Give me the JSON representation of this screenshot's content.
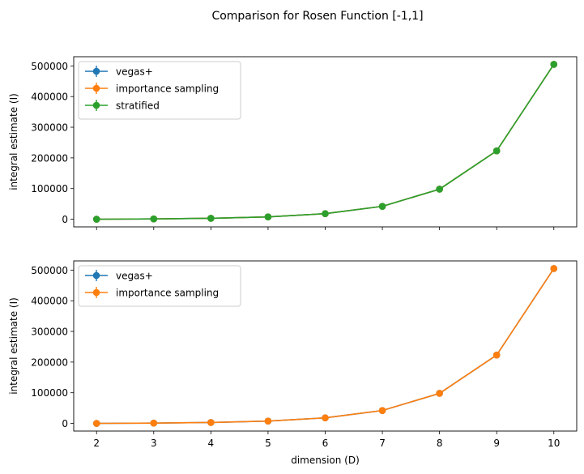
{
  "figure": {
    "title": "Comparison for Rosen Function [-1,1]"
  },
  "chart_data": [
    {
      "type": "line",
      "title": "",
      "xlabel": "",
      "ylabel": "integral estimate (I)",
      "x": [
        2,
        3,
        4,
        5,
        6,
        7,
        8,
        9,
        10
      ],
      "xlim": [
        1.6,
        10.4
      ],
      "ylim": [
        -25000,
        530000
      ],
      "yticks": [
        0,
        100000,
        200000,
        300000,
        400000,
        500000
      ],
      "show_x_tick_labels": false,
      "grid": false,
      "legend_position": "upper-left",
      "series": [
        {
          "name": "vegas+",
          "color": "#1f77b4",
          "values": [
            0,
            1000,
            3000,
            7500,
            18000,
            42000,
            98000,
            223000,
            505000
          ]
        },
        {
          "name": "importance sampling",
          "color": "#ff7f0e",
          "values": [
            0,
            1000,
            3000,
            7500,
            18000,
            42000,
            98000,
            223000,
            505000
          ]
        },
        {
          "name": "stratified",
          "color": "#2ca02c",
          "values": [
            0,
            1000,
            3000,
            7500,
            18000,
            42000,
            98000,
            223000,
            505000
          ]
        }
      ]
    },
    {
      "type": "line",
      "title": "",
      "xlabel": "dimension (D)",
      "ylabel": "integral estimate (I)",
      "x": [
        2,
        3,
        4,
        5,
        6,
        7,
        8,
        9,
        10
      ],
      "xlim": [
        1.6,
        10.4
      ],
      "ylim": [
        -25000,
        530000
      ],
      "yticks": [
        0,
        100000,
        200000,
        300000,
        400000,
        500000
      ],
      "show_x_tick_labels": true,
      "grid": false,
      "legend_position": "upper-left",
      "series": [
        {
          "name": "vegas+",
          "color": "#1f77b4",
          "values": [
            0,
            1000,
            3000,
            7500,
            18000,
            42000,
            98000,
            223000,
            505000
          ]
        },
        {
          "name": "importance sampling",
          "color": "#ff7f0e",
          "values": [
            0,
            1000,
            3000,
            7500,
            18000,
            42000,
            98000,
            223000,
            505000
          ]
        }
      ]
    }
  ]
}
